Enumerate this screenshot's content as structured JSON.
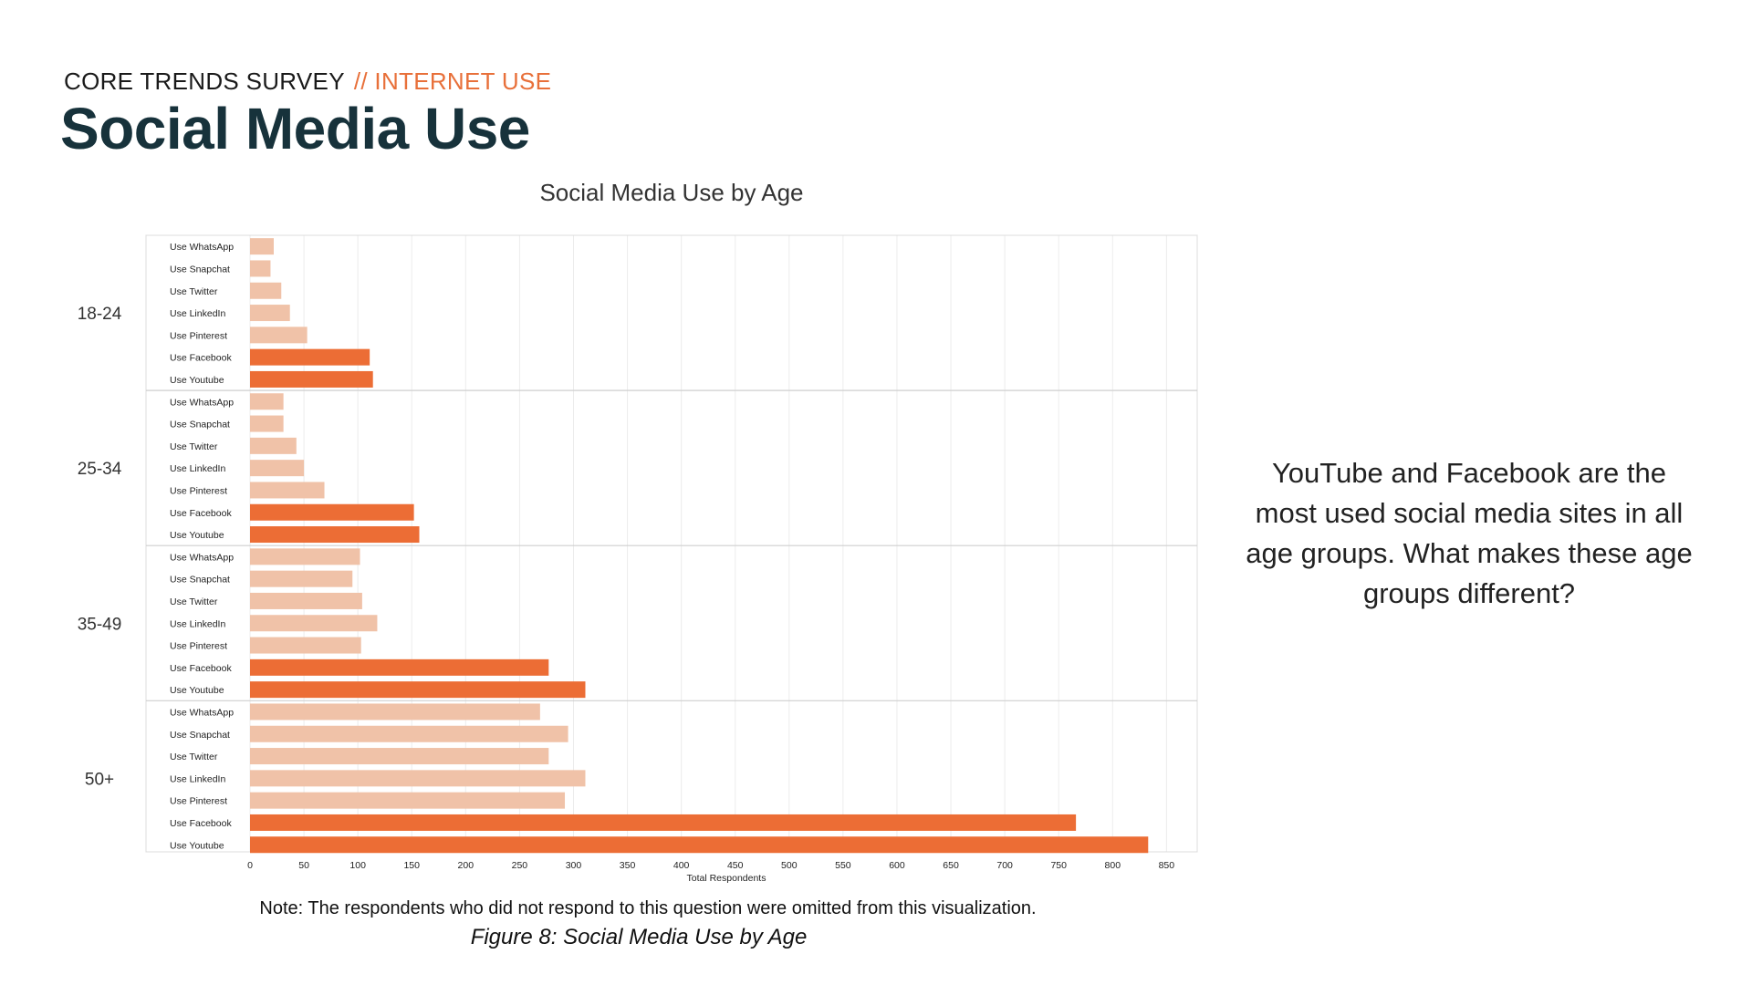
{
  "header": {
    "kicker": "CORE TRENDS SURVEY",
    "kicker_accent": "// INTERNET USE",
    "title": "Social Media Use"
  },
  "colors": {
    "highlight": "#ec6d35",
    "muted": "#f0c2a8",
    "title": "#17323b",
    "accent": "#e8703a"
  },
  "chart_data": {
    "type": "bar",
    "orientation": "horizontal",
    "title": "Social Media Use by Age",
    "xlabel": "Total Respondents",
    "ylabel": "",
    "xlim": [
      0,
      870
    ],
    "xticks": [
      0,
      50,
      100,
      150,
      200,
      250,
      300,
      350,
      400,
      450,
      500,
      550,
      600,
      650,
      700,
      750,
      800,
      850
    ],
    "grid": true,
    "groups": [
      {
        "name": "18-24",
        "bars": [
          {
            "label": "Use WhatsApp",
            "value": 22,
            "highlight": false
          },
          {
            "label": "Use Snapchat",
            "value": 19,
            "highlight": false
          },
          {
            "label": "Use Twitter",
            "value": 29,
            "highlight": false
          },
          {
            "label": "Use LinkedIn",
            "value": 37,
            "highlight": false
          },
          {
            "label": "Use Pinterest",
            "value": 53,
            "highlight": false
          },
          {
            "label": "Use Facebook",
            "value": 111,
            "highlight": true
          },
          {
            "label": "Use Youtube",
            "value": 114,
            "highlight": true
          }
        ]
      },
      {
        "name": "25-34",
        "bars": [
          {
            "label": "Use WhatsApp",
            "value": 31,
            "highlight": false
          },
          {
            "label": "Use Snapchat",
            "value": 31,
            "highlight": false
          },
          {
            "label": "Use Twitter",
            "value": 43,
            "highlight": false
          },
          {
            "label": "Use LinkedIn",
            "value": 50,
            "highlight": false
          },
          {
            "label": "Use Pinterest",
            "value": 69,
            "highlight": false
          },
          {
            "label": "Use Facebook",
            "value": 152,
            "highlight": true
          },
          {
            "label": "Use Youtube",
            "value": 157,
            "highlight": true
          }
        ]
      },
      {
        "name": "35-49",
        "bars": [
          {
            "label": "Use WhatsApp",
            "value": 102,
            "highlight": false
          },
          {
            "label": "Use Snapchat",
            "value": 95,
            "highlight": false
          },
          {
            "label": "Use Twitter",
            "value": 104,
            "highlight": false
          },
          {
            "label": "Use LinkedIn",
            "value": 118,
            "highlight": false
          },
          {
            "label": "Use Pinterest",
            "value": 103,
            "highlight": false
          },
          {
            "label": "Use Facebook",
            "value": 277,
            "highlight": true
          },
          {
            "label": "Use Youtube",
            "value": 311,
            "highlight": true
          }
        ]
      },
      {
        "name": "50+",
        "bars": [
          {
            "label": "Use WhatsApp",
            "value": 269,
            "highlight": false
          },
          {
            "label": "Use Snapchat",
            "value": 295,
            "highlight": false
          },
          {
            "label": "Use Twitter",
            "value": 277,
            "highlight": false
          },
          {
            "label": "Use LinkedIn",
            "value": 311,
            "highlight": false
          },
          {
            "label": "Use Pinterest",
            "value": 292,
            "highlight": false
          },
          {
            "label": "Use Facebook",
            "value": 766,
            "highlight": true
          },
          {
            "label": "Use Youtube",
            "value": 833,
            "highlight": true
          }
        ]
      }
    ]
  },
  "note": "Note: The respondents who did not respond to this question were omitted from this visualization.",
  "figure_caption": "Figure 8: Social Media Use by Age",
  "insight": "YouTube and Facebook are the most used social media sites in all age groups. What makes these age groups different?"
}
